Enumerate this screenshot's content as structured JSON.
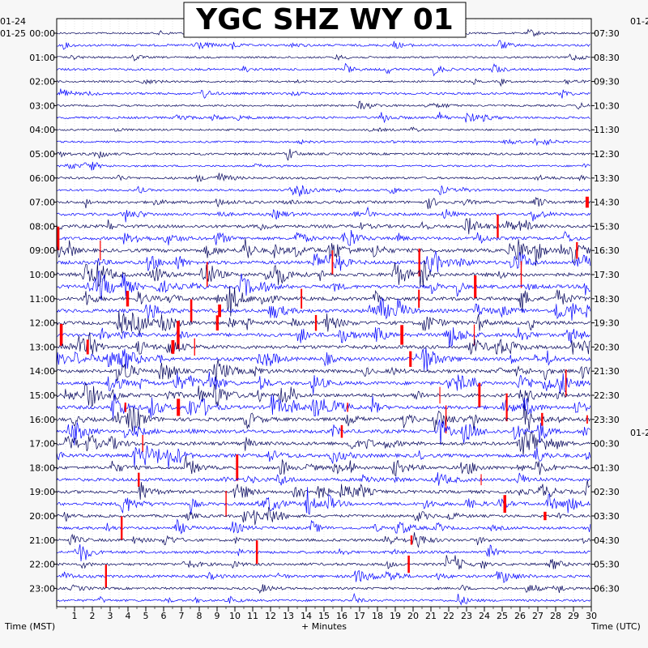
{
  "chart_data": {
    "type": "helicorder",
    "title": "YGC SHZ WY 01",
    "left_axis_title": "Time (MST)",
    "right_axis_title": "Time (UTC)",
    "x_axis_title": "+ Minutes",
    "left_date_top": "01-24",
    "left_date_first": "01-25",
    "right_date_top": "01-2",
    "right_date_mid": "01-2",
    "x_range": [
      0,
      30
    ],
    "x_ticks": [
      "1",
      "2",
      "3",
      "4",
      "5",
      "6",
      "7",
      "8",
      "9",
      "10",
      "11",
      "12",
      "13",
      "14",
      "15",
      "16",
      "17",
      "18",
      "19",
      "20",
      "21",
      "22",
      "23",
      "24",
      "25",
      "26",
      "27",
      "28",
      "29",
      "30"
    ],
    "rows_per_hour": 2,
    "hours_mst": [
      "00:00",
      "01:00",
      "02:00",
      "03:00",
      "04:00",
      "05:00",
      "06:00",
      "07:00",
      "08:00",
      "09:00",
      "10:00",
      "11:00",
      "12:00",
      "13:00",
      "14:00",
      "15:00",
      "16:00",
      "17:00",
      "18:00",
      "19:00",
      "20:00",
      "21:00",
      "22:00",
      "23:00"
    ],
    "hours_utc": [
      "07:30",
      "08:30",
      "09:30",
      "10:30",
      "11:30",
      "12:30",
      "13:30",
      "14:30",
      "15:30",
      "16:30",
      "17:30",
      "18:30",
      "19:30",
      "20:30",
      "21:30",
      "22:30",
      "23:30",
      "00:30",
      "01:30",
      "02:30",
      "03:30",
      "04:30",
      "05:30",
      "06:30"
    ],
    "trace_colors": [
      "#00005a",
      "#0000ff"
    ],
    "clip_color": "#ff0000",
    "grid": true,
    "row_activity": [
      2,
      3,
      2,
      3,
      2,
      3,
      2,
      3,
      2,
      2,
      3,
      2,
      3,
      3,
      4,
      4,
      5,
      5,
      6,
      6,
      6,
      6,
      6,
      6,
      6,
      6,
      6,
      6,
      6,
      6,
      6,
      6,
      6,
      6,
      6,
      6,
      5,
      5,
      5,
      5,
      4,
      4,
      4,
      4,
      4,
      4,
      3,
      3
    ]
  },
  "colors": {
    "background": "#ffffff",
    "page_bg": "#f7f7f7"
  }
}
